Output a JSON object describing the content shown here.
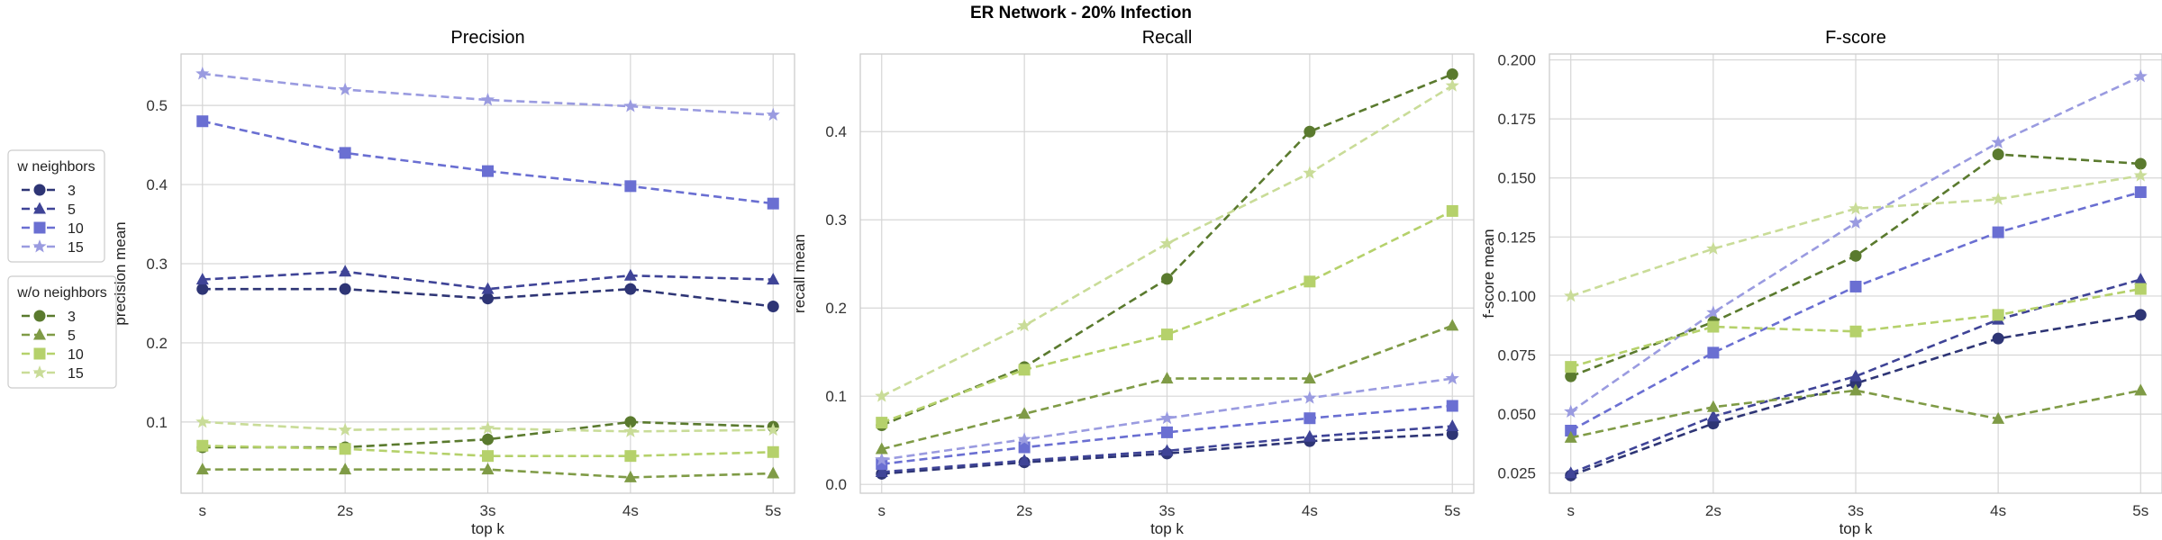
{
  "title": "ER Network - 20% Infection",
  "colors": {
    "w_3": "#2e3575",
    "w_5": "#3f4497",
    "w_10": "#6a6fd2",
    "w_15": "#9a9be0",
    "wo_3": "#5a7a2e",
    "wo_5": "#7f9b46",
    "wo_10": "#b5d16b",
    "wo_15": "#c9dc98"
  },
  "legend": {
    "groups": [
      {
        "title": "w neighbors",
        "items": [
          {
            "label": "3",
            "marker": "circle",
            "color_key": "w_3"
          },
          {
            "label": "5",
            "marker": "triangle",
            "color_key": "w_5"
          },
          {
            "label": "10",
            "marker": "square",
            "color_key": "w_10"
          },
          {
            "label": "15",
            "marker": "star",
            "color_key": "w_15"
          }
        ]
      },
      {
        "title": "w/o neighbors",
        "items": [
          {
            "label": "3",
            "marker": "circle",
            "color_key": "wo_3"
          },
          {
            "label": "5",
            "marker": "triangle",
            "color_key": "wo_5"
          },
          {
            "label": "10",
            "marker": "square",
            "color_key": "wo_10"
          },
          {
            "label": "15",
            "marker": "star",
            "color_key": "wo_15"
          }
        ]
      }
    ]
  },
  "chart_data": [
    {
      "type": "line",
      "title": "Precision",
      "xlabel": "top k",
      "ylabel": "precision mean",
      "x": [
        "s",
        "2s",
        "3s",
        "4s",
        "5s"
      ],
      "ylim": [
        0.01,
        0.565
      ],
      "yticks": [
        "0.1",
        "0.2",
        "0.3",
        "0.4",
        "0.5"
      ],
      "ytick_values": [
        0.1,
        0.2,
        0.3,
        0.4,
        0.5
      ],
      "grid": true,
      "series": [
        {
          "group": "w neighbors",
          "k": "3",
          "color_key": "w_3",
          "marker": "circle",
          "values": [
            0.268,
            0.268,
            0.256,
            0.268,
            0.246
          ]
        },
        {
          "group": "w neighbors",
          "k": "5",
          "color_key": "w_5",
          "marker": "triangle",
          "values": [
            0.28,
            0.29,
            0.268,
            0.285,
            0.28
          ]
        },
        {
          "group": "w neighbors",
          "k": "10",
          "color_key": "w_10",
          "marker": "square",
          "values": [
            0.48,
            0.44,
            0.417,
            0.398,
            0.376
          ]
        },
        {
          "group": "w neighbors",
          "k": "15",
          "color_key": "w_15",
          "marker": "star",
          "values": [
            0.54,
            0.52,
            0.507,
            0.499,
            0.488
          ]
        },
        {
          "group": "w/o neighbors",
          "k": "3",
          "color_key": "wo_3",
          "marker": "circle",
          "values": [
            0.068,
            0.068,
            0.078,
            0.1,
            0.094
          ]
        },
        {
          "group": "w/o neighbors",
          "k": "5",
          "color_key": "wo_5",
          "marker": "triangle",
          "values": [
            0.04,
            0.04,
            0.04,
            0.03,
            0.035
          ]
        },
        {
          "group": "w/o neighbors",
          "k": "10",
          "color_key": "wo_10",
          "marker": "square",
          "values": [
            0.07,
            0.066,
            0.057,
            0.057,
            0.062
          ]
        },
        {
          "group": "w/o neighbors",
          "k": "15",
          "color_key": "wo_15",
          "marker": "star",
          "values": [
            0.1,
            0.09,
            0.092,
            0.088,
            0.09
          ]
        }
      ]
    },
    {
      "type": "line",
      "title": "Recall",
      "xlabel": "top k",
      "ylabel": "recall mean",
      "x": [
        "s",
        "2s",
        "3s",
        "4s",
        "5s"
      ],
      "ylim": [
        -0.01,
        0.488
      ],
      "yticks": [
        "0.0",
        "0.1",
        "0.2",
        "0.3",
        "0.4"
      ],
      "ytick_values": [
        0.0,
        0.1,
        0.2,
        0.3,
        0.4
      ],
      "grid": true,
      "series": [
        {
          "group": "w neighbors",
          "k": "3",
          "color_key": "w_3",
          "marker": "circle",
          "values": [
            0.012,
            0.025,
            0.035,
            0.049,
            0.057
          ]
        },
        {
          "group": "w neighbors",
          "k": "5",
          "color_key": "w_5",
          "marker": "triangle",
          "values": [
            0.014,
            0.027,
            0.038,
            0.054,
            0.066
          ]
        },
        {
          "group": "w neighbors",
          "k": "10",
          "color_key": "w_10",
          "marker": "square",
          "values": [
            0.023,
            0.042,
            0.059,
            0.075,
            0.089
          ]
        },
        {
          "group": "w neighbors",
          "k": "15",
          "color_key": "w_15",
          "marker": "star",
          "values": [
            0.028,
            0.051,
            0.075,
            0.098,
            0.12
          ]
        },
        {
          "group": "w/o neighbors",
          "k": "3",
          "color_key": "wo_3",
          "marker": "circle",
          "values": [
            0.067,
            0.133,
            0.233,
            0.4,
            0.465
          ]
        },
        {
          "group": "w/o neighbors",
          "k": "5",
          "color_key": "wo_5",
          "marker": "triangle",
          "values": [
            0.04,
            0.08,
            0.12,
            0.12,
            0.18
          ]
        },
        {
          "group": "w/o neighbors",
          "k": "10",
          "color_key": "wo_10",
          "marker": "square",
          "values": [
            0.07,
            0.13,
            0.17,
            0.23,
            0.31
          ]
        },
        {
          "group": "w/o neighbors",
          "k": "15",
          "color_key": "wo_15",
          "marker": "star",
          "values": [
            0.1,
            0.18,
            0.273,
            0.353,
            0.452
          ]
        }
      ]
    },
    {
      "type": "line",
      "title": "F-score",
      "xlabel": "top k",
      "ylabel": "f-score mean",
      "x": [
        "s",
        "2s",
        "3s",
        "4s",
        "5s"
      ],
      "ylim": [
        0.0165,
        0.2025
      ],
      "yticks": [
        "0.025",
        "0.050",
        "0.075",
        "0.100",
        "0.125",
        "0.150",
        "0.175",
        "0.200"
      ],
      "ytick_values": [
        0.025,
        0.05,
        0.075,
        0.1,
        0.125,
        0.15,
        0.175,
        0.2
      ],
      "grid": true,
      "series": [
        {
          "group": "w neighbors",
          "k": "3",
          "color_key": "w_3",
          "marker": "circle",
          "values": [
            0.024,
            0.046,
            0.063,
            0.082,
            0.092
          ]
        },
        {
          "group": "w neighbors",
          "k": "5",
          "color_key": "w_5",
          "marker": "triangle",
          "values": [
            0.025,
            0.049,
            0.066,
            0.09,
            0.107
          ]
        },
        {
          "group": "w neighbors",
          "k": "10",
          "color_key": "w_10",
          "marker": "square",
          "values": [
            0.043,
            0.076,
            0.104,
            0.127,
            0.144
          ]
        },
        {
          "group": "w neighbors",
          "k": "15",
          "color_key": "w_15",
          "marker": "star",
          "values": [
            0.051,
            0.093,
            0.131,
            0.165,
            0.193
          ]
        },
        {
          "group": "w/o neighbors",
          "k": "3",
          "color_key": "wo_3",
          "marker": "circle",
          "values": [
            0.066,
            0.089,
            0.117,
            0.16,
            0.156
          ]
        },
        {
          "group": "w/o neighbors",
          "k": "5",
          "color_key": "wo_5",
          "marker": "triangle",
          "values": [
            0.04,
            0.053,
            0.06,
            0.048,
            0.06
          ]
        },
        {
          "group": "w/o neighbors",
          "k": "10",
          "color_key": "wo_10",
          "marker": "square",
          "values": [
            0.07,
            0.087,
            0.085,
            0.092,
            0.103
          ]
        },
        {
          "group": "w/o neighbors",
          "k": "15",
          "color_key": "wo_15",
          "marker": "star",
          "values": [
            0.1,
            0.12,
            0.137,
            0.141,
            0.151
          ]
        }
      ]
    }
  ]
}
